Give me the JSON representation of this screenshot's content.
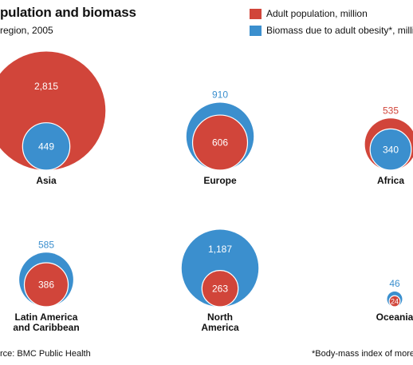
{
  "chart_data": {
    "type": "bubble",
    "title": "pulation and biomass",
    "subtitle": "region, 2005",
    "legend": [
      {
        "label": "Adult population, million",
        "color": "#d1453a"
      },
      {
        "label": "Biomass due to adult obesity*, million",
        "color": "#3b8fce"
      }
    ],
    "colors": {
      "population": "#d1453a",
      "biomass": "#3b8fce",
      "text_light": "#ffffff"
    },
    "categories": [
      "Asia",
      "Europe",
      "Africa",
      "Latin America\nand Caribbean",
      "North\nAmerica",
      "Oceania"
    ],
    "series": [
      {
        "name": "Adult population, million",
        "values": [
          2815,
          606,
          535,
          386,
          263,
          24
        ]
      },
      {
        "name": "Biomass due to adult obesity*, million",
        "values": [
          449,
          910,
          340,
          585,
          1187,
          46
        ]
      }
    ],
    "value_labels": {
      "population": [
        "2,815",
        "606",
        "535",
        "386",
        "263",
        "24"
      ],
      "biomass": [
        "449",
        "910",
        "340",
        "585",
        "1,187",
        "46"
      ]
    },
    "source": "rce: BMC Public Health",
    "footnote": "*Body-mass index of more tha"
  }
}
